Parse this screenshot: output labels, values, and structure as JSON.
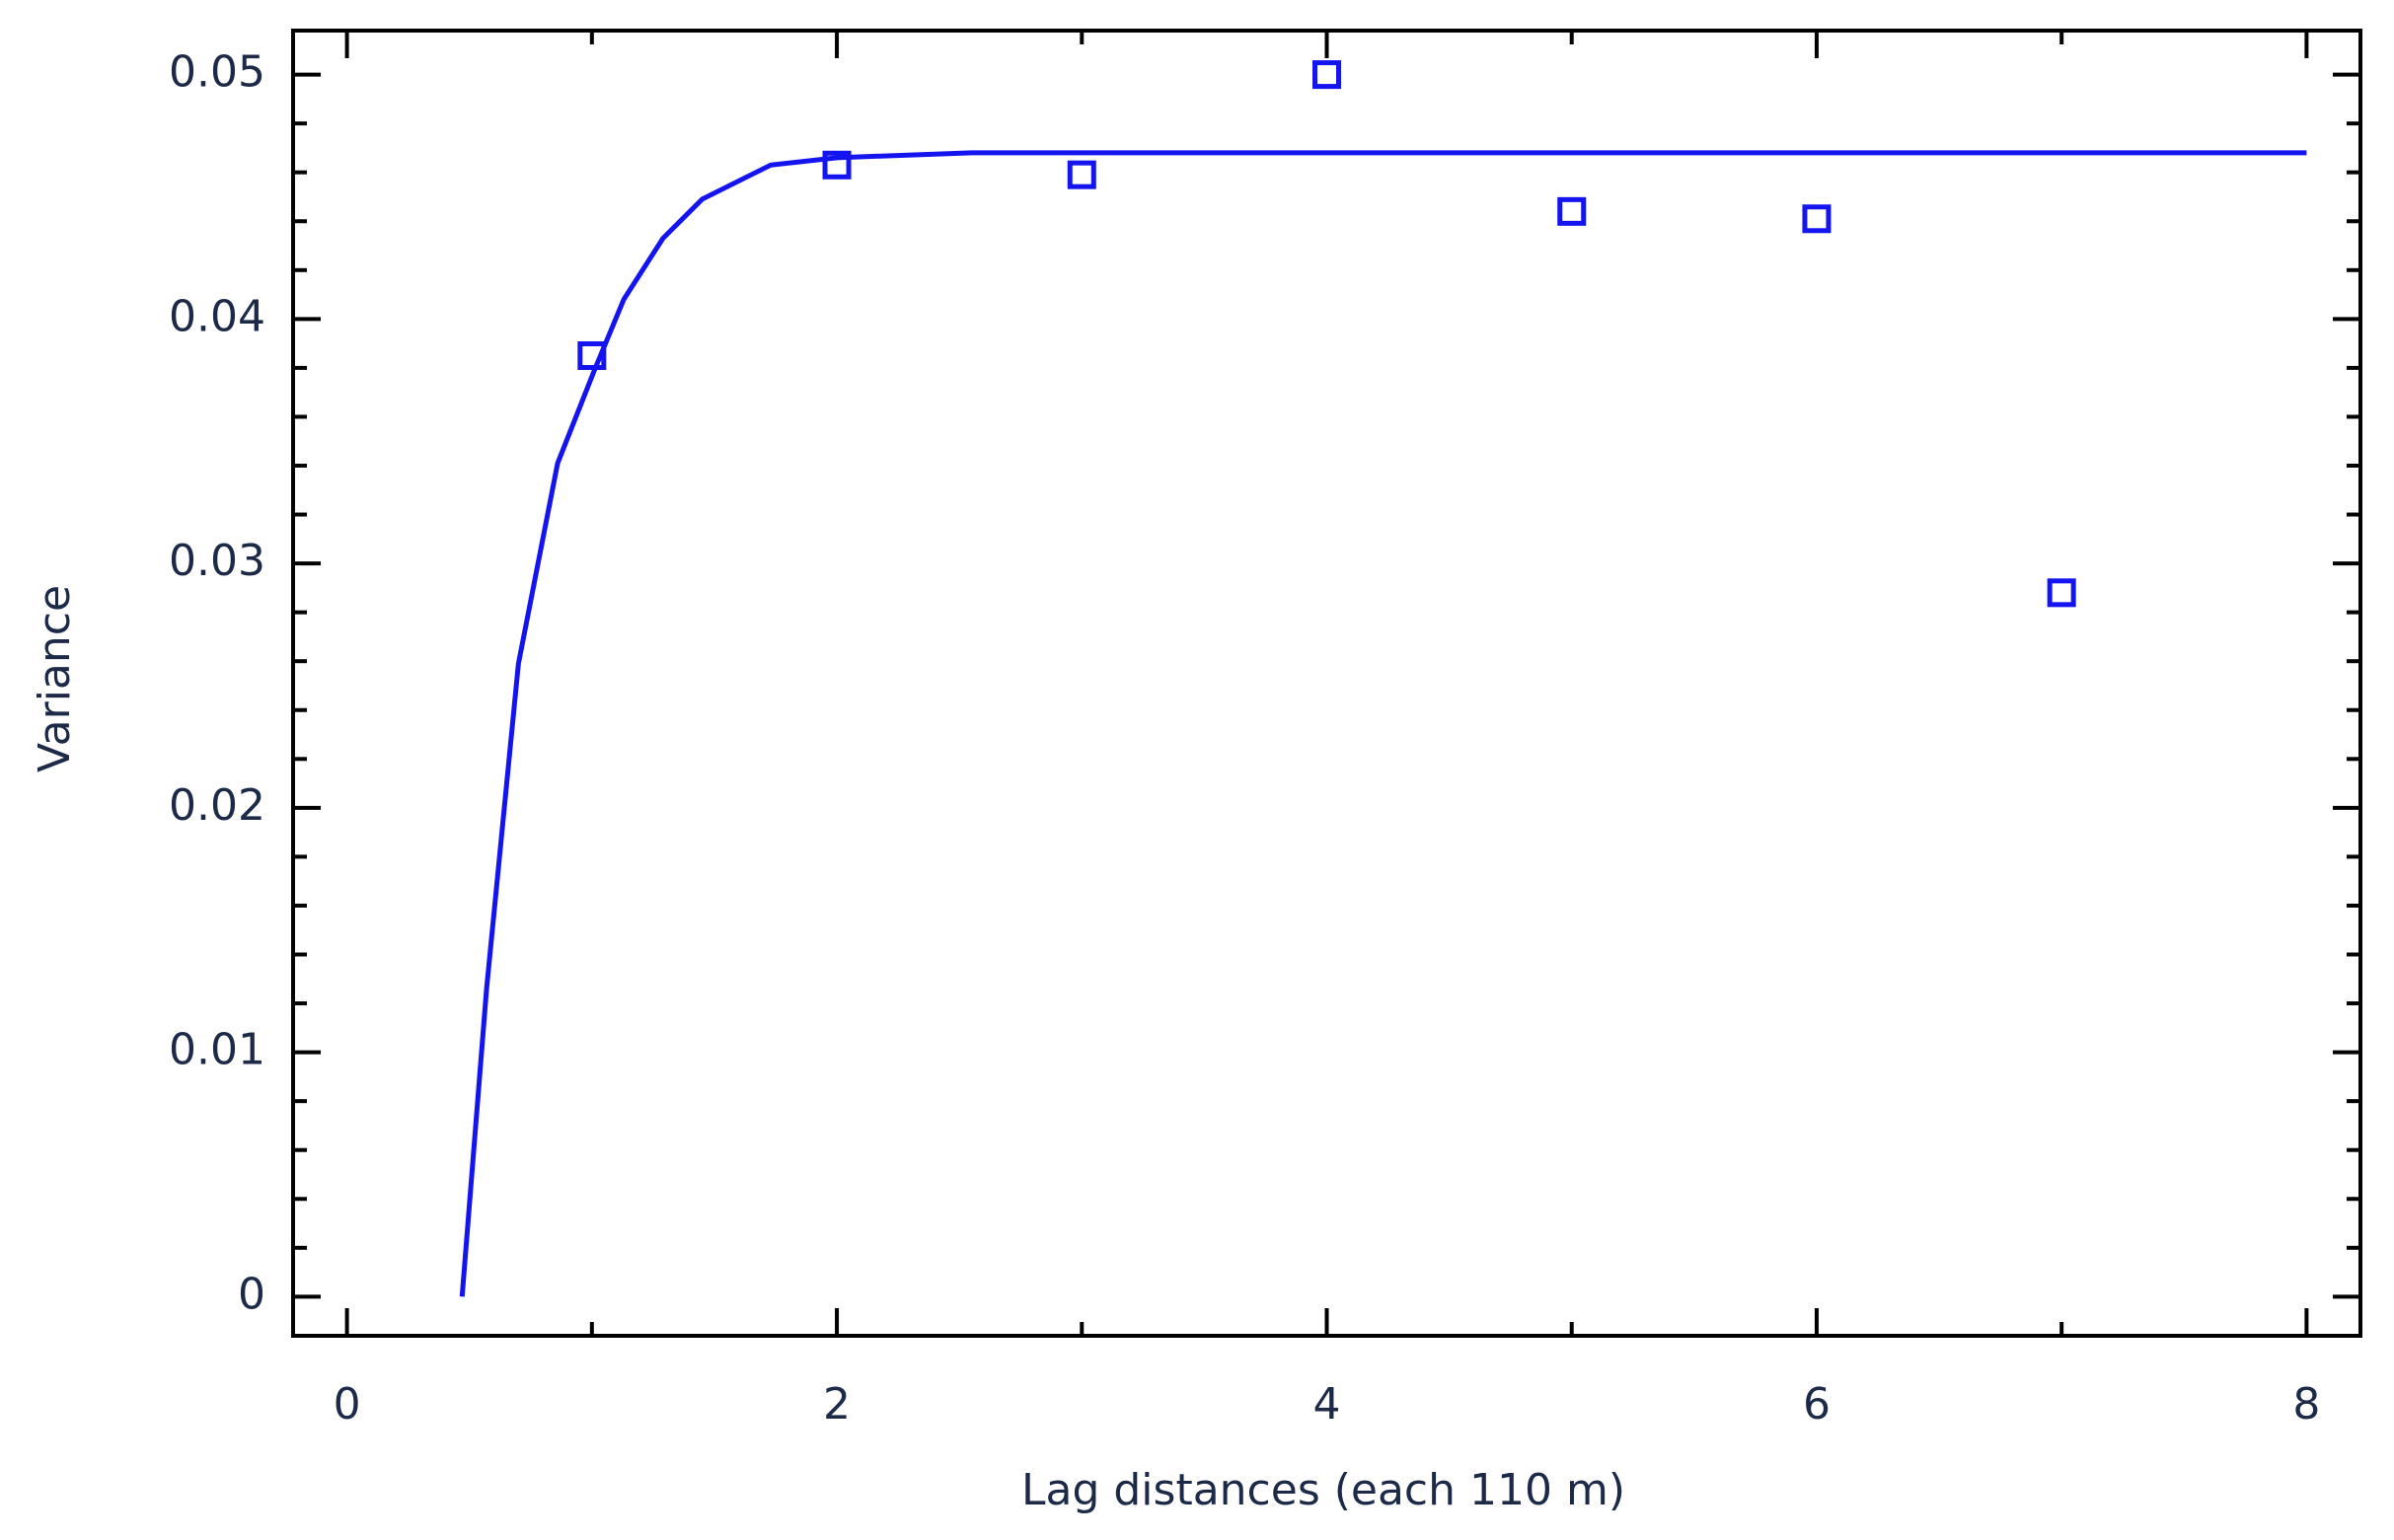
{
  "chart_data": {
    "type": "scatter",
    "xlabel": "Lag distances (each 110 m)",
    "ylabel": "Variance",
    "xlim": [
      -0.22,
      8.22
    ],
    "ylim": [
      -0.0016,
      0.0518
    ],
    "xticks": [
      0,
      2,
      4,
      6,
      8
    ],
    "yticks": [
      0,
      0.01,
      0.02,
      0.03,
      0.04,
      0.05
    ],
    "xminorticks": [
      1,
      3,
      5,
      7
    ],
    "yminorticks": [
      0.002,
      0.004,
      0.006,
      0.008,
      0.012,
      0.014,
      0.016,
      0.018,
      0.022,
      0.024,
      0.026,
      0.028,
      0.032,
      0.034,
      0.036,
      0.038,
      0.042,
      0.044,
      0.046,
      0.048
    ],
    "points": {
      "color": "#1414f0",
      "x": [
        1,
        2,
        3,
        4,
        5,
        6,
        7
      ],
      "values": [
        0.0385,
        0.0463,
        0.0459,
        0.05,
        0.0444,
        0.0441,
        0.0288
      ]
    },
    "fit": {
      "color": "#1414f0",
      "x": [
        0.47,
        0.57,
        0.7,
        0.86,
        1.01,
        1.13,
        1.29,
        1.45,
        1.73,
        2.0,
        2.55,
        8
      ],
      "values": [
        0,
        0.0126,
        0.0259,
        0.0341,
        0.0379,
        0.0408,
        0.0433,
        0.0449,
        0.0463,
        0.0466,
        0.0468,
        0.0468
      ]
    }
  }
}
